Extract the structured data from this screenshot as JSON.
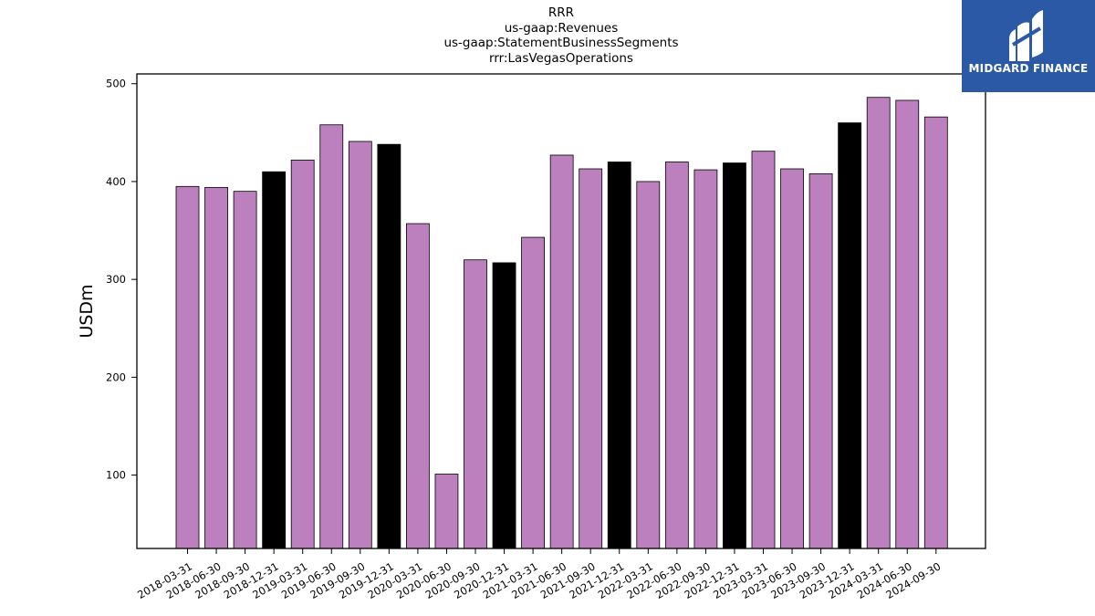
{
  "chart_data": {
    "type": "bar",
    "title_lines": [
      "RRR",
      "us-gaap:Revenues",
      "us-gaap:StatementBusinessSegments",
      "rrr:LasVegasOperations"
    ],
    "xlabel": "",
    "ylabel": "USDm",
    "ylim": [
      25,
      510
    ],
    "yticks": [
      100,
      200,
      300,
      400,
      500
    ],
    "grid": false,
    "categories": [
      "2018-03-31",
      "2018-06-30",
      "2018-09-30",
      "2018-12-31",
      "2019-03-31",
      "2019-06-30",
      "2019-09-30",
      "2019-12-31",
      "2020-03-31",
      "2020-06-30",
      "2020-09-30",
      "2020-12-31",
      "2021-03-31",
      "2021-06-30",
      "2021-09-30",
      "2021-12-31",
      "2022-03-31",
      "2022-06-30",
      "2022-09-30",
      "2022-12-31",
      "2023-03-31",
      "2023-06-30",
      "2023-09-30",
      "2023-12-31",
      "2024-03-31",
      "2024-06-30",
      "2024-09-30"
    ],
    "values": [
      395,
      394,
      390,
      410,
      422,
      458,
      441,
      438,
      357,
      101,
      320,
      317,
      343,
      427,
      413,
      420,
      400,
      420,
      412,
      419,
      431,
      413,
      408,
      460,
      486,
      483,
      466
    ],
    "bar_colors": {
      "quarter": "#bb80bd",
      "year_end": "#000000",
      "edge": "#000000"
    }
  },
  "logo": {
    "brand": "MIDGARD FINANCE",
    "color": "#2b59a6"
  }
}
